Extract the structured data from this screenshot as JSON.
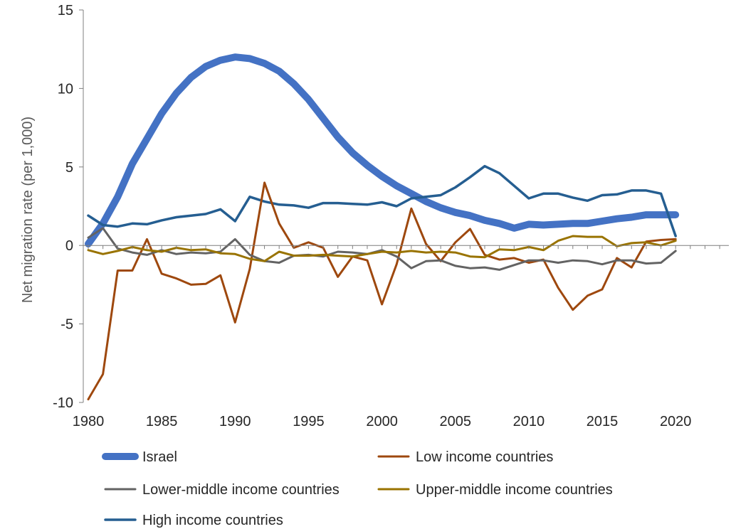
{
  "chart_data": {
    "type": "line",
    "title": "",
    "xlabel": "",
    "ylabel": "Net migration rate (per 1,000)",
    "xlim": [
      1980,
      2024
    ],
    "ylim": [
      -10,
      15
    ],
    "xticks": [
      1980,
      1985,
      1990,
      1995,
      2000,
      2005,
      2010,
      2015,
      2020
    ],
    "yticks": [
      15,
      10,
      5,
      0,
      -5,
      -10
    ],
    "x_tick_labels": [
      "1980",
      "1985",
      "1990",
      "1995",
      "2000",
      "2005",
      "2010",
      "2015",
      "2020"
    ],
    "y_tick_labels": [
      "15",
      "10",
      "5",
      "0",
      "-5",
      "-10"
    ],
    "grid": false,
    "legend_position": "bottom",
    "x": [
      1980,
      1981,
      1982,
      1983,
      1984,
      1985,
      1986,
      1987,
      1988,
      1989,
      1990,
      1991,
      1992,
      1993,
      1994,
      1995,
      1996,
      1997,
      1998,
      1999,
      2000,
      2001,
      2002,
      2003,
      2004,
      2005,
      2006,
      2007,
      2008,
      2009,
      2010,
      2011,
      2012,
      2013,
      2014,
      2015,
      2016,
      2017,
      2018,
      2019,
      2020
    ],
    "series": [
      {
        "name": "Israel",
        "color": "#4472C4",
        "width": 10,
        "values": [
          0.1,
          1.4,
          3.1,
          5.2,
          6.8,
          8.4,
          9.7,
          10.7,
          11.4,
          11.8,
          12.0,
          11.9,
          11.6,
          11.1,
          10.3,
          9.3,
          8.1,
          6.9,
          5.9,
          5.1,
          4.4,
          3.8,
          3.3,
          2.8,
          2.4,
          2.1,
          1.9,
          1.6,
          1.4,
          1.1,
          1.35,
          1.3,
          1.35,
          1.4,
          1.4,
          1.55,
          1.7,
          1.8,
          1.95,
          1.95,
          1.95
        ]
      },
      {
        "name": "Low income countries",
        "color": "#9E480E",
        "width": 3,
        "values": [
          -9.8,
          -8.2,
          -1.6,
          -1.6,
          0.4,
          -1.8,
          -2.1,
          -2.5,
          -2.45,
          -1.9,
          -4.9,
          -1.5,
          4.0,
          1.4,
          -0.15,
          0.2,
          -0.15,
          -2.0,
          -0.7,
          -0.95,
          -3.75,
          -1.2,
          2.35,
          0.1,
          -1.0,
          0.2,
          1.05,
          -0.6,
          -0.9,
          -0.8,
          -1.1,
          -0.9,
          -2.7,
          -4.1,
          -3.2,
          -2.8,
          -0.8,
          -1.4,
          0.25,
          0.35,
          0.4
        ]
      },
      {
        "name": "Lower-middle income countries",
        "color": "#636363",
        "width": 3,
        "values": [
          0.5,
          1.1,
          -0.2,
          -0.45,
          -0.6,
          -0.3,
          -0.55,
          -0.45,
          -0.5,
          -0.4,
          0.4,
          -0.6,
          -1.0,
          -1.1,
          -0.65,
          -0.6,
          -0.7,
          -0.4,
          -0.45,
          -0.55,
          -0.3,
          -0.7,
          -1.45,
          -1.0,
          -0.95,
          -1.3,
          -1.45,
          -1.4,
          -1.55,
          -1.25,
          -0.95,
          -0.95,
          -1.1,
          -0.95,
          -1.0,
          -1.2,
          -0.95,
          -0.95,
          -1.15,
          -1.1,
          -0.35
        ]
      },
      {
        "name": "Upper-middle income countries",
        "color": "#997300",
        "width": 3,
        "values": [
          -0.3,
          -0.55,
          -0.35,
          -0.1,
          -0.3,
          -0.4,
          -0.15,
          -0.3,
          -0.25,
          -0.5,
          -0.55,
          -0.85,
          -1.0,
          -0.4,
          -0.65,
          -0.65,
          -0.6,
          -0.65,
          -0.7,
          -0.55,
          -0.4,
          -0.45,
          -0.35,
          -0.45,
          -0.4,
          -0.45,
          -0.7,
          -0.75,
          -0.25,
          -0.3,
          -0.1,
          -0.3,
          0.3,
          0.6,
          0.55,
          0.55,
          -0.05,
          0.15,
          0.2,
          0.0,
          0.3
        ]
      },
      {
        "name": "High income countries",
        "color": "#255E91",
        "width": 3.5,
        "values": [
          1.9,
          1.3,
          1.2,
          1.4,
          1.35,
          1.6,
          1.8,
          1.9,
          2.0,
          2.3,
          1.55,
          3.1,
          2.8,
          2.6,
          2.55,
          2.4,
          2.7,
          2.7,
          2.65,
          2.6,
          2.75,
          2.5,
          3.0,
          3.1,
          3.2,
          3.7,
          4.35,
          5.05,
          4.6,
          3.8,
          3.0,
          3.3,
          3.3,
          3.05,
          2.85,
          3.2,
          3.25,
          3.5,
          3.5,
          3.3,
          0.6
        ]
      }
    ]
  }
}
